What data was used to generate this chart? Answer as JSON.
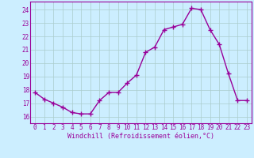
{
  "x": [
    0,
    1,
    2,
    3,
    4,
    5,
    6,
    7,
    8,
    9,
    10,
    11,
    12,
    13,
    14,
    15,
    16,
    17,
    18,
    19,
    20,
    21,
    22,
    23
  ],
  "y": [
    17.8,
    17.3,
    17.0,
    16.7,
    16.3,
    16.2,
    16.2,
    17.2,
    17.8,
    17.8,
    18.5,
    19.1,
    20.8,
    21.2,
    22.5,
    22.7,
    22.9,
    24.1,
    24.0,
    22.5,
    21.4,
    19.2,
    17.2,
    17.2
  ],
  "line_color": "#990099",
  "marker": "+",
  "marker_size": 4,
  "marker_lw": 1.0,
  "background_color": "#cceeff",
  "grid_color": "#aacccc",
  "xlabel": "Windchill (Refroidissement éolien,°C)",
  "ylim": [
    15.5,
    24.6
  ],
  "xlim": [
    -0.5,
    23.5
  ],
  "yticks": [
    16,
    17,
    18,
    19,
    20,
    21,
    22,
    23,
    24
  ],
  "xticks": [
    0,
    1,
    2,
    3,
    4,
    5,
    6,
    7,
    8,
    9,
    10,
    11,
    12,
    13,
    14,
    15,
    16,
    17,
    18,
    19,
    20,
    21,
    22,
    23
  ],
  "tick_color": "#990099",
  "label_color": "#990099",
  "tick_fontsize": 5.5,
  "xlabel_fontsize": 6.0,
  "line_width": 1.0
}
